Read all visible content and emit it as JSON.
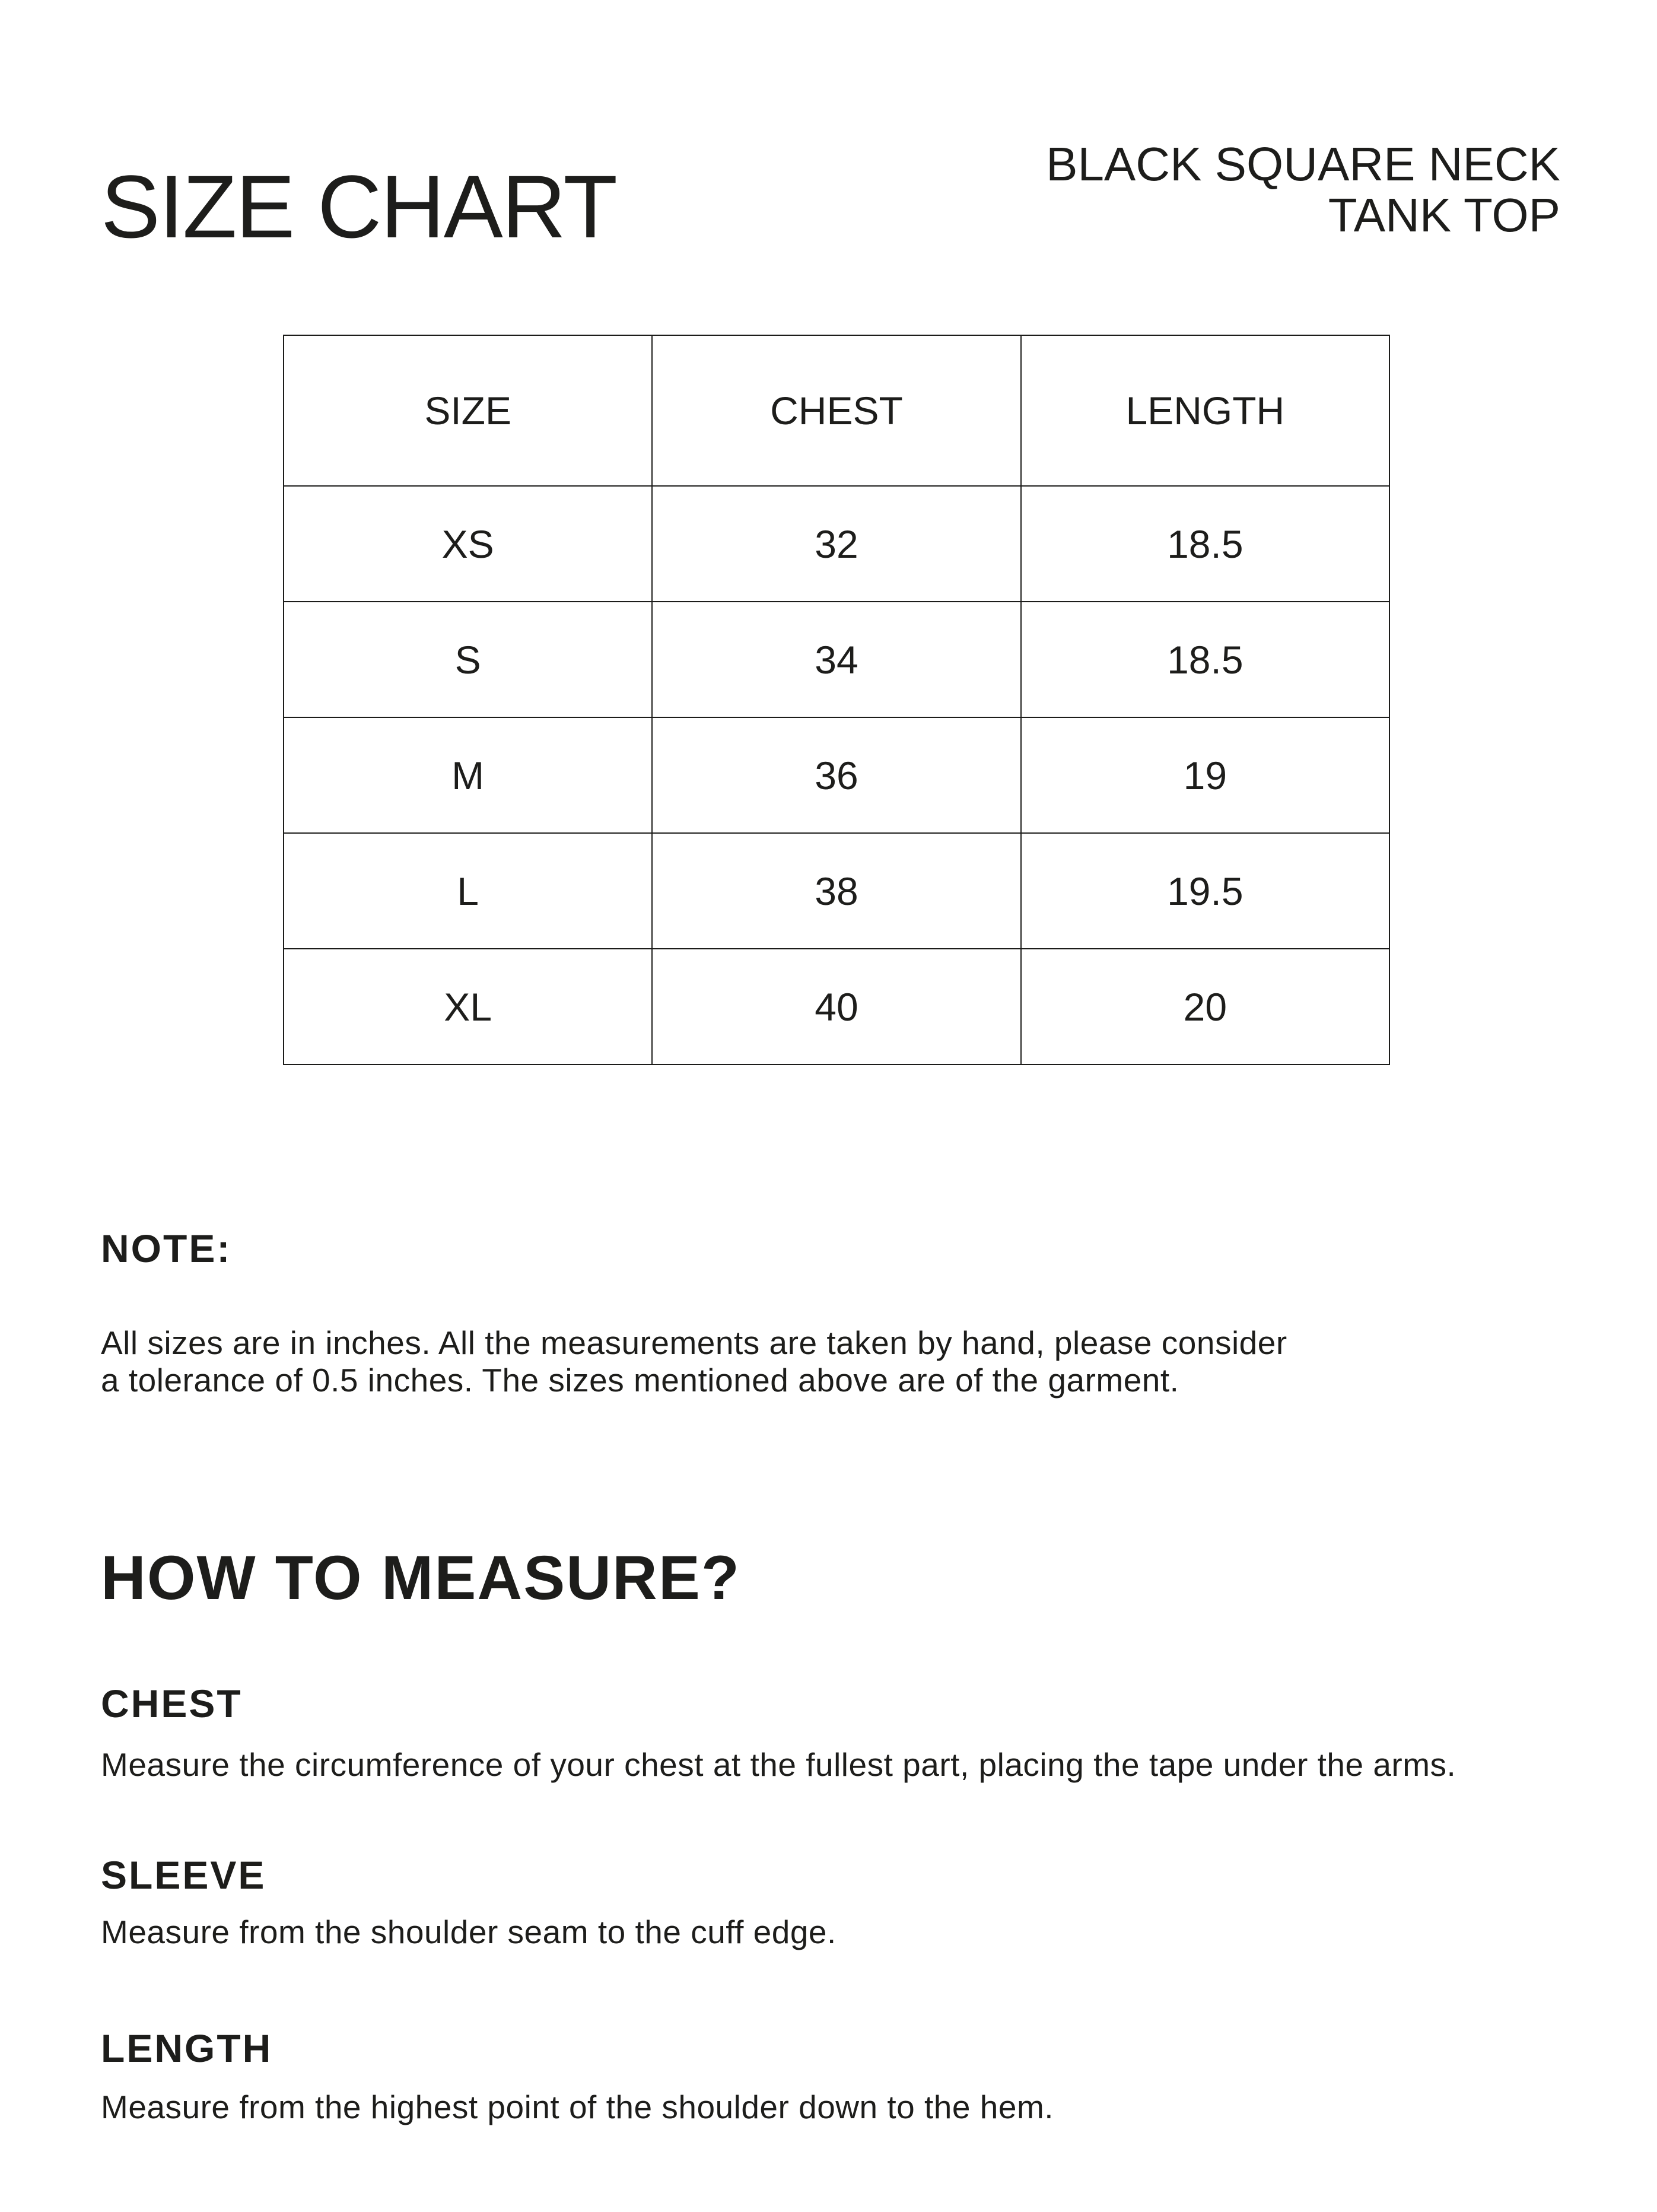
{
  "page": {
    "background_color": "#ffffff",
    "text_color": "#1d1d1b",
    "table_border_color": "#1c1c1a"
  },
  "header": {
    "title": "SIZE CHART",
    "product_line1": "BLACK SQUARE NECK",
    "product_line2": "TANK TOP"
  },
  "size_table": {
    "headers": [
      "SIZE",
      "CHEST",
      "LENGTH"
    ],
    "rows": [
      {
        "size": "XS",
        "chest": "32",
        "length": "18.5"
      },
      {
        "size": "S",
        "chest": "34",
        "length": "18.5"
      },
      {
        "size": "M",
        "chest": "36",
        "length": "19"
      },
      {
        "size": "L",
        "chest": "38",
        "length": "19.5"
      },
      {
        "size": "XL",
        "chest": "40",
        "length": "20"
      }
    ]
  },
  "note": {
    "heading": "NOTE:",
    "body": "All sizes are in inches. All the measurements are taken by hand, please consider\na tolerance of 0.5 inches. The sizes mentioned above are of the garment."
  },
  "how_to_measure": {
    "heading": "HOW TO MEASURE?",
    "items": [
      {
        "label": "CHEST",
        "description": "Measure the circumference of your chest at the fullest part, placing the tape under the arms."
      },
      {
        "label": "SLEEVE",
        "description": "Measure from the shoulder seam to the cuff edge."
      },
      {
        "label": "LENGTH",
        "description": "Measure from the highest point of the shoulder down to the hem."
      }
    ]
  }
}
